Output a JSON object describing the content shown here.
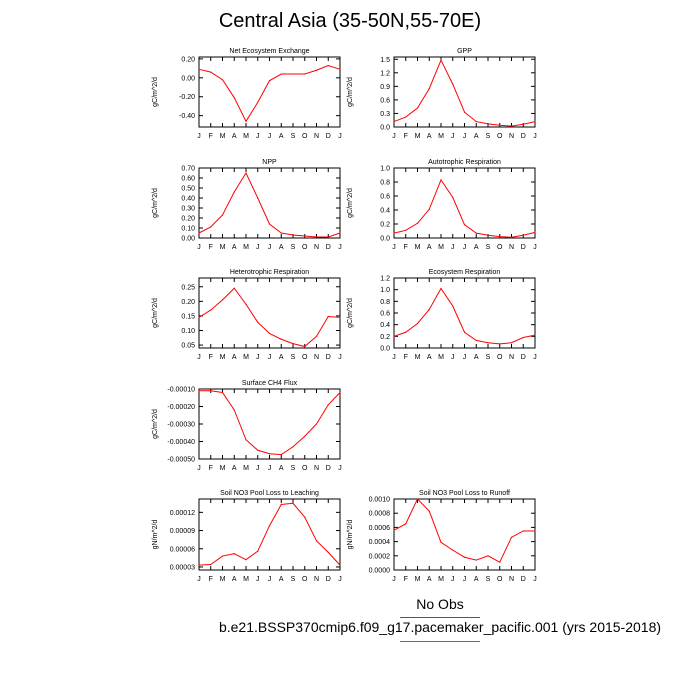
{
  "title": "Central Asia (35-50N,55-70E)",
  "legend": {
    "label": "No Obs",
    "line_colors": [
      "#3b4fc4",
      "#d43d3d"
    ]
  },
  "case_label": "b.e21.BSSP370cmip6.f09_g17.pacemaker_pacific.001 (yrs 2015-2018)",
  "line_color": "#ff0000",
  "chart_data": [
    {
      "type": "line",
      "title": "Net Ecosystem Exchange",
      "ylabel": "gC/m^2/d",
      "categories": [
        "J",
        "F",
        "M",
        "A",
        "M",
        "J",
        "J",
        "A",
        "S",
        "O",
        "N",
        "D",
        "J"
      ],
      "values": [
        0.09,
        0.06,
        -0.02,
        -0.21,
        -0.46,
        -0.26,
        -0.03,
        0.04,
        0.04,
        0.04,
        0.08,
        0.13,
        0.09
      ],
      "ylim": [
        -0.52,
        0.22
      ],
      "yticks": [
        -0.4,
        -0.2,
        0.0,
        0.2
      ],
      "yticklabels": [
        "-0.40",
        "-0.20",
        "0.00",
        "0.20"
      ]
    },
    {
      "type": "line",
      "title": "GPP",
      "ylabel": "gC/m^2/d",
      "categories": [
        "J",
        "F",
        "M",
        "A",
        "M",
        "J",
        "J",
        "A",
        "S",
        "O",
        "N",
        "D",
        "J"
      ],
      "values": [
        0.12,
        0.22,
        0.42,
        0.85,
        1.48,
        0.95,
        0.33,
        0.12,
        0.07,
        0.04,
        0.02,
        0.06,
        0.12
      ],
      "ylim": [
        0.0,
        1.55
      ],
      "yticks": [
        0.0,
        0.3,
        0.6,
        0.9,
        1.2,
        1.5
      ],
      "yticklabels": [
        "0.0",
        "0.3",
        "0.6",
        "0.9",
        "1.2",
        "1.5"
      ]
    },
    {
      "type": "line",
      "title": "NPP",
      "ylabel": "gC/m^2/d",
      "categories": [
        "J",
        "F",
        "M",
        "A",
        "M",
        "J",
        "J",
        "A",
        "S",
        "O",
        "N",
        "D",
        "J"
      ],
      "values": [
        0.05,
        0.11,
        0.23,
        0.46,
        0.65,
        0.4,
        0.14,
        0.05,
        0.03,
        0.02,
        0.01,
        0.01,
        0.05
      ],
      "ylim": [
        0.0,
        0.7
      ],
      "yticks": [
        0.0,
        0.1,
        0.2,
        0.3,
        0.4,
        0.5,
        0.6,
        0.7
      ],
      "yticklabels": [
        "0.00",
        "0.10",
        "0.20",
        "0.30",
        "0.40",
        "0.50",
        "0.60",
        "0.70"
      ]
    },
    {
      "type": "line",
      "title": "Autotrophic Respiration",
      "ylabel": "gC/m^2/d",
      "categories": [
        "J",
        "F",
        "M",
        "A",
        "M",
        "J",
        "J",
        "A",
        "S",
        "O",
        "N",
        "D",
        "J"
      ],
      "values": [
        0.07,
        0.11,
        0.21,
        0.41,
        0.83,
        0.58,
        0.19,
        0.07,
        0.04,
        0.02,
        0.01,
        0.04,
        0.08
      ],
      "ylim": [
        0.0,
        1.0
      ],
      "yticks": [
        0.0,
        0.2,
        0.4,
        0.6,
        0.8,
        1.0
      ],
      "yticklabels": [
        "0.0",
        "0.2",
        "0.4",
        "0.6",
        "0.8",
        "1.0"
      ]
    },
    {
      "type": "line",
      "title": "Heterotrophic Respiration",
      "ylabel": "gC/m^2/d",
      "categories": [
        "J",
        "F",
        "M",
        "A",
        "M",
        "J",
        "J",
        "A",
        "S",
        "O",
        "N",
        "D",
        "J"
      ],
      "values": [
        0.145,
        0.17,
        0.205,
        0.245,
        0.19,
        0.128,
        0.09,
        0.07,
        0.055,
        0.045,
        0.08,
        0.148,
        0.145
      ],
      "ylim": [
        0.04,
        0.28
      ],
      "yticks": [
        0.05,
        0.1,
        0.15,
        0.2,
        0.25
      ],
      "yticklabels": [
        "0.05",
        "0.10",
        "0.15",
        "0.20",
        "0.25"
      ]
    },
    {
      "type": "line",
      "title": "Ecosystem Respiration",
      "ylabel": "gC/m^2/d",
      "categories": [
        "J",
        "F",
        "M",
        "A",
        "M",
        "J",
        "J",
        "A",
        "S",
        "O",
        "N",
        "D",
        "J"
      ],
      "values": [
        0.2,
        0.27,
        0.42,
        0.66,
        1.02,
        0.72,
        0.27,
        0.13,
        0.09,
        0.07,
        0.09,
        0.18,
        0.22
      ],
      "ylim": [
        0.0,
        1.2
      ],
      "yticks": [
        0.0,
        0.2,
        0.4,
        0.6,
        0.8,
        1.0,
        1.2
      ],
      "yticklabels": [
        "0.0",
        "0.2",
        "0.4",
        "0.6",
        "0.8",
        "1.0",
        "1.2"
      ]
    },
    {
      "type": "line",
      "title": "Surface CH4 Flux",
      "ylabel": "gC/m^2/d",
      "categories": [
        "J",
        "F",
        "M",
        "A",
        "M",
        "J",
        "J",
        "A",
        "S",
        "O",
        "N",
        "D",
        "J"
      ],
      "values": [
        -0.00011,
        -0.00011,
        -0.00012,
        -0.00022,
        -0.00039,
        -0.00045,
        -0.00047,
        -0.000475,
        -0.00043,
        -0.00037,
        -0.0003,
        -0.00019,
        -0.00012
      ],
      "ylim": [
        -0.0005,
        -0.0001
      ],
      "yticks": [
        -0.0005,
        -0.0004,
        -0.0003,
        -0.0002,
        -0.0001
      ],
      "yticklabels": [
        "-0.00050",
        "-0.00040",
        "-0.00030",
        "-0.00020",
        "-0.00010"
      ]
    },
    {
      "type": "line",
      "title": "Soil NO3 Pool Loss to Leaching",
      "ylabel": "gN/m^2/d",
      "categories": [
        "J",
        "F",
        "M",
        "A",
        "M",
        "J",
        "J",
        "A",
        "S",
        "O",
        "N",
        "D",
        "J"
      ],
      "values": [
        3.3e-05,
        3.4e-05,
        4.8e-05,
        5.2e-05,
        4.2e-05,
        5.6e-05,
        9.8e-05,
        0.000133,
        0.000135,
        0.000112,
        7.3e-05,
        5.4e-05,
        3.3e-05
      ],
      "ylim": [
        2.5e-05,
        0.000142
      ],
      "yticks": [
        3e-05,
        6e-05,
        9e-05,
        0.00012
      ],
      "yticklabels": [
        "0.00003",
        "0.00006",
        "0.00009",
        "0.00012"
      ]
    },
    {
      "type": "line",
      "title": "Soil NO3 Pool Loss to Runoff",
      "ylabel": "gN/m^2/d",
      "categories": [
        "J",
        "F",
        "M",
        "A",
        "M",
        "J",
        "J",
        "A",
        "S",
        "O",
        "N",
        "D",
        "J"
      ],
      "values": [
        0.00056,
        0.00065,
        0.001,
        0.00083,
        0.00039,
        0.00028,
        0.00018,
        0.00014,
        0.0002,
        0.00011,
        0.00046,
        0.00055,
        0.00055
      ],
      "ylim": [
        0.0,
        0.001
      ],
      "yticks": [
        0.0,
        0.0002,
        0.0004,
        0.0006,
        0.0008,
        0.001
      ],
      "yticklabels": [
        "0.0000",
        "0.0002",
        "0.0004",
        "0.0006",
        "0.0008",
        "0.0010"
      ]
    }
  ]
}
